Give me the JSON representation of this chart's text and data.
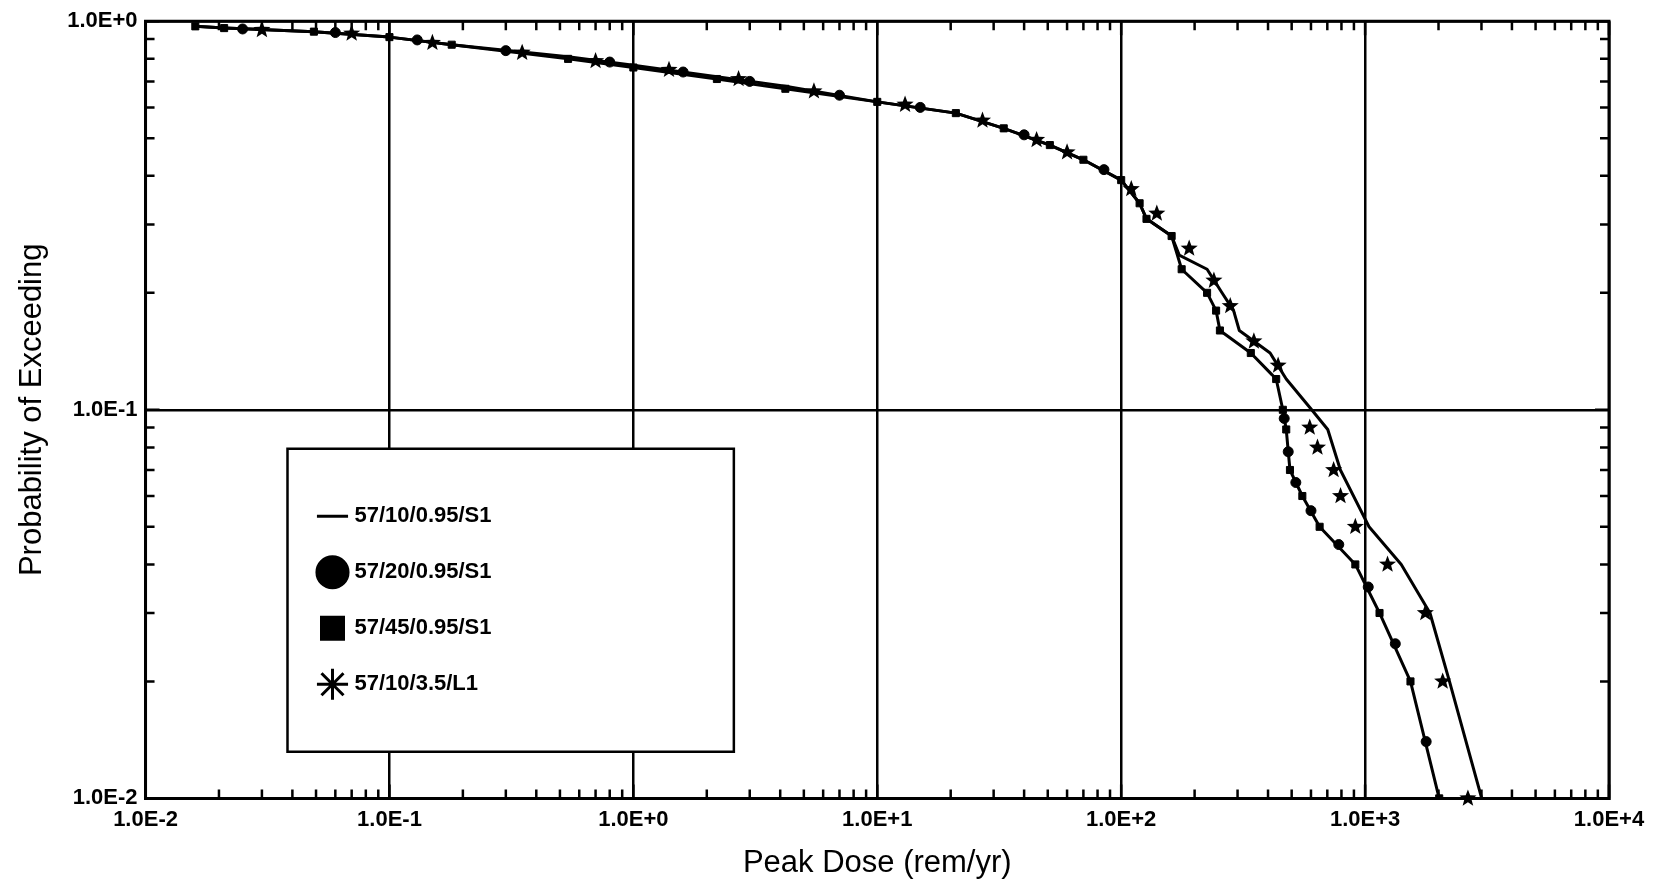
{
  "chart_data": {
    "type": "line",
    "xlabel": "Peak Dose (rem/yr)",
    "ylabel": "Probability of Exceeding",
    "log": "xy",
    "grid": true,
    "legend": "bottom left",
    "xlim": [
      0.01,
      10000
    ],
    "ylim": [
      0.01,
      1
    ],
    "xticks": [
      {
        "value": 0.01,
        "label": "1.0E-2"
      },
      {
        "value": 0.02,
        "label": null
      },
      {
        "value": 0.03,
        "label": null
      },
      {
        "value": 0.04,
        "label": null
      },
      {
        "value": 0.05,
        "label": null
      },
      {
        "value": 0.06,
        "label": null
      },
      {
        "value": 0.07,
        "label": null
      },
      {
        "value": 0.08,
        "label": null
      },
      {
        "value": 0.09,
        "label": null
      },
      {
        "value": 0.1,
        "label": "1.0E-1"
      },
      {
        "value": 0.2,
        "label": null
      },
      {
        "value": 0.3,
        "label": null
      },
      {
        "value": 0.4,
        "label": null
      },
      {
        "value": 0.5,
        "label": null
      },
      {
        "value": 0.6,
        "label": null
      },
      {
        "value": 0.7,
        "label": null
      },
      {
        "value": 0.8,
        "label": null
      },
      {
        "value": 0.9,
        "label": null
      },
      {
        "value": 1,
        "label": "1.0E+0"
      },
      {
        "value": 2,
        "label": null
      },
      {
        "value": 3,
        "label": null
      },
      {
        "value": 4,
        "label": null
      },
      {
        "value": 5,
        "label": null
      },
      {
        "value": 6,
        "label": null
      },
      {
        "value": 7,
        "label": null
      },
      {
        "value": 8,
        "label": null
      },
      {
        "value": 9,
        "label": null
      },
      {
        "value": 10,
        "label": "1.0E+1"
      },
      {
        "value": 20,
        "label": null
      },
      {
        "value": 30,
        "label": null
      },
      {
        "value": 40,
        "label": null
      },
      {
        "value": 50,
        "label": null
      },
      {
        "value": 60,
        "label": null
      },
      {
        "value": 70,
        "label": null
      },
      {
        "value": 80,
        "label": null
      },
      {
        "value": 90,
        "label": null
      },
      {
        "value": 100,
        "label": "1.0E+2"
      },
      {
        "value": 200,
        "label": null
      },
      {
        "value": 300,
        "label": null
      },
      {
        "value": 400,
        "label": null
      },
      {
        "value": 500,
        "label": null
      },
      {
        "value": 600,
        "label": null
      },
      {
        "value": 700,
        "label": null
      },
      {
        "value": 800,
        "label": null
      },
      {
        "value": 900,
        "label": null
      },
      {
        "value": 1000,
        "label": "1.0E+3"
      },
      {
        "value": 2000,
        "label": null
      },
      {
        "value": 3000,
        "label": null
      },
      {
        "value": 4000,
        "label": null
      },
      {
        "value": 5000,
        "label": null
      },
      {
        "value": 6000,
        "label": null
      },
      {
        "value": 7000,
        "label": null
      },
      {
        "value": 8000,
        "label": null
      },
      {
        "value": 9000,
        "label": null
      },
      {
        "value": 10000,
        "label": "1.0E+4"
      }
    ],
    "yticks": [
      {
        "value": 0.01,
        "label": "1.0E-2"
      },
      {
        "value": 0.02,
        "label": null
      },
      {
        "value": 0.03,
        "label": null
      },
      {
        "value": 0.04,
        "label": null
      },
      {
        "value": 0.05,
        "label": null
      },
      {
        "value": 0.06,
        "label": null
      },
      {
        "value": 0.07,
        "label": null
      },
      {
        "value": 0.08,
        "label": null
      },
      {
        "value": 0.09,
        "label": null
      },
      {
        "value": 0.1,
        "label": "1.0E-1"
      },
      {
        "value": 0.2,
        "label": null
      },
      {
        "value": 0.3,
        "label": null
      },
      {
        "value": 0.4,
        "label": null
      },
      {
        "value": 0.5,
        "label": null
      },
      {
        "value": 0.6,
        "label": null
      },
      {
        "value": 0.7,
        "label": null
      },
      {
        "value": 0.8,
        "label": null
      },
      {
        "value": 0.9,
        "label": null
      },
      {
        "value": 1,
        "label": "1.0E+0"
      }
    ],
    "series": [
      {
        "name": "57/10/0.95/S1",
        "type": "line",
        "marker": "none",
        "color": "#000000",
        "x": [
          0.016,
          0.021,
          0.049,
          0.1,
          0.18,
          0.54,
          1.0,
          2.2,
          4.2,
          10,
          21,
          33,
          51,
          70,
          100,
          119,
          127,
          161,
          173,
          225,
          259,
          289,
          305,
          408,
          475,
          604,
          703,
          792,
          1038,
          1407,
          1845,
          2218,
          3007
        ],
        "values": [
          0.97,
          0.96,
          0.94,
          0.91,
          0.87,
          0.81,
          0.77,
          0.72,
          0.68,
          0.62,
          0.58,
          0.53,
          0.48,
          0.44,
          0.39,
          0.34,
          0.31,
          0.28,
          0.25,
          0.23,
          0.2,
          0.18,
          0.16,
          0.14,
          0.12,
          0.1,
          0.089,
          0.07,
          0.05,
          0.04,
          0.03,
          0.02,
          0.01
        ]
      },
      {
        "name": "57/20/0.95/S1",
        "type": "scatter",
        "marker": "circle",
        "color": "#000000",
        "x": [
          0.025,
          0.06,
          0.13,
          0.3,
          0.8,
          1.6,
          3,
          7,
          15,
          40,
          85,
          466,
          484,
          520,
          600,
          780,
          1030,
          1330,
          1780
        ],
        "values": [
          0.955,
          0.935,
          0.895,
          0.84,
          0.785,
          0.74,
          0.7,
          0.645,
          0.6,
          0.51,
          0.415,
          0.095,
          0.078,
          0.065,
          0.055,
          0.045,
          0.035,
          0.025,
          0.014
        ]
      },
      {
        "name": "57/45/0.95/S1",
        "type": "line",
        "marker": "square",
        "color": "#000000",
        "x": [
          0.016,
          0.021,
          0.049,
          0.1,
          0.18,
          0.54,
          1.0,
          2.2,
          4.2,
          10,
          21,
          33,
          51,
          70,
          100,
          119,
          127,
          161,
          177,
          225,
          245,
          254,
          340,
          432,
          460,
          475,
          492,
          553,
          651,
          912,
          1146,
          1535,
          2013
        ],
        "values": [
          0.97,
          0.96,
          0.94,
          0.91,
          0.87,
          0.8,
          0.76,
          0.71,
          0.67,
          0.62,
          0.58,
          0.53,
          0.48,
          0.44,
          0.39,
          0.34,
          0.31,
          0.28,
          0.23,
          0.2,
          0.18,
          0.16,
          0.14,
          0.12,
          0.1,
          0.089,
          0.07,
          0.06,
          0.05,
          0.04,
          0.03,
          0.02,
          0.01
        ]
      },
      {
        "name": "57/10/3.5/L1",
        "type": "scatter",
        "marker": "star",
        "color": "#000000",
        "x": [
          0.03,
          0.07,
          0.15,
          0.35,
          0.7,
          1.4,
          2.7,
          5.5,
          13,
          27,
          45,
          60,
          110,
          140,
          190,
          240,
          280,
          350,
          440,
          593,
          638,
          743,
          793,
          912,
          1236,
          1766,
          2080,
          2640
        ],
        "values": [
          0.95,
          0.93,
          0.88,
          0.83,
          0.79,
          0.75,
          0.71,
          0.66,
          0.61,
          0.555,
          0.495,
          0.46,
          0.37,
          0.32,
          0.26,
          0.215,
          0.185,
          0.15,
          0.13,
          0.09,
          0.08,
          0.07,
          0.06,
          0.05,
          0.04,
          0.03,
          0.02,
          0.01
        ]
      }
    ]
  }
}
